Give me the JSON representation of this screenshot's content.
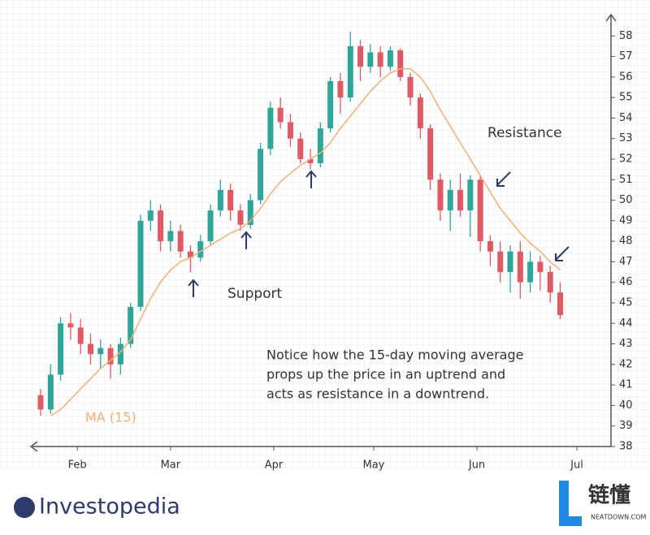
{
  "chart_data": {
    "type": "candlestick",
    "x": [
      20,
      23,
      26,
      29,
      32,
      35,
      38,
      41,
      44,
      47,
      50,
      53,
      56,
      59,
      62,
      65,
      68,
      71,
      74,
      77,
      80,
      83,
      86,
      89,
      92,
      95,
      98,
      101,
      104,
      107,
      110,
      113,
      116,
      119,
      122,
      125,
      128,
      131,
      134,
      137,
      140,
      143,
      146,
      149,
      152,
      155,
      158,
      161,
      164,
      167,
      170,
      173,
      176
    ],
    "open": [
      40.5,
      39.8,
      41.5,
      44,
      43.8,
      43,
      42.5,
      42.8,
      42,
      43,
      44.8,
      49,
      49.5,
      48,
      48.5,
      47.5,
      47.2,
      48,
      49.5,
      50.5,
      49.5,
      48.8,
      50,
      52.5,
      54.5,
      53.8,
      53,
      52,
      51.8,
      53.5,
      55.8,
      55,
      57.5,
      56.5,
      57.2,
      56.5,
      57.3,
      56,
      55,
      53.5,
      51,
      49.5,
      50.5,
      49.5,
      51,
      48,
      47.5,
      46.5,
      47.5,
      46,
      47,
      46.5,
      45.5
    ],
    "high": [
      40.8,
      42,
      44.3,
      44.5,
      44.2,
      43.5,
      43.2,
      43,
      43.3,
      45,
      49.3,
      50,
      49.8,
      49,
      48.8,
      47.8,
      48.3,
      49.8,
      51,
      50.8,
      49.8,
      50.3,
      52.8,
      54.8,
      55,
      54.2,
      53.3,
      52.5,
      53.8,
      56,
      56.2,
      58.2,
      57.8,
      57.6,
      57.5,
      57.5,
      57.4,
      56.2,
      55.2,
      53.7,
      51.3,
      51,
      51.3,
      51.2,
      51.2,
      48.3,
      48,
      47.8,
      48,
      47.5,
      47.3,
      46.8,
      46
    ],
    "low": [
      39.5,
      39.6,
      41.2,
      43.2,
      42.5,
      42,
      41.8,
      41.3,
      41.5,
      42.8,
      44.6,
      48.5,
      47.5,
      47.5,
      47.2,
      46.5,
      47,
      47.8,
      49.2,
      49,
      48.5,
      48.6,
      49.8,
      52.2,
      53.5,
      52.6,
      51.8,
      51.5,
      51.6,
      53.3,
      54.2,
      54.8,
      55.8,
      56.2,
      56,
      56.3,
      55.8,
      54.6,
      53,
      50.5,
      49,
      48.5,
      49.2,
      48.2,
      47.5,
      46.8,
      46,
      45.5,
      45.2,
      45.5,
      45.6,
      45,
      44.2
    ],
    "close": [
      39.8,
      41.5,
      44,
      43.8,
      43,
      42.5,
      42.8,
      42,
      43,
      44.8,
      49,
      49.5,
      48,
      48.5,
      47.5,
      47.2,
      48,
      49.5,
      50.5,
      49.5,
      48.8,
      50,
      52.5,
      54.5,
      53.8,
      53,
      52,
      51.8,
      53.5,
      55.8,
      55,
      57.5,
      56.5,
      57.2,
      56.5,
      57.3,
      56,
      55,
      53.5,
      51,
      49.5,
      50.5,
      49.5,
      51,
      48,
      47.5,
      46.5,
      47.5,
      46,
      47,
      46.5,
      45.5,
      44.4
    ],
    "up_color": "#2fa69a",
    "down_color": "#e05a64",
    "series": [
      {
        "name": "MA (15)",
        "color": "#f4ae72",
        "values": [
          null,
          39.5,
          39.8,
          40.3,
          40.8,
          41.3,
          41.8,
          42.2,
          42.6,
          43.2,
          44.2,
          45.2,
          46,
          46.6,
          47,
          47.2,
          47.5,
          47.8,
          48.1,
          48.4,
          48.6,
          49,
          49.6,
          50.3,
          50.9,
          51.3,
          51.7,
          52,
          52.3,
          52.8,
          53.5,
          54.1,
          54.7,
          55.3,
          55.8,
          56.2,
          56.4,
          56.4,
          56,
          55.3,
          54.4,
          53.6,
          52.8,
          52,
          51.2,
          50.4,
          49.6,
          49,
          48.4,
          47.9,
          47.5,
          47,
          46.6
        ]
      }
    ],
    "xlim": [
      10,
      191
    ],
    "xticks": [
      {
        "value": 31,
        "label": "Feb"
      },
      {
        "value": 59,
        "label": "Mar"
      },
      {
        "value": 90,
        "label": "Apr"
      },
      {
        "value": 120,
        "label": "May"
      },
      {
        "value": 151,
        "label": "Jun"
      },
      {
        "value": 181,
        "label": "Jul"
      }
    ],
    "ylim": [
      38,
      59
    ],
    "yticks": [
      38,
      39,
      40,
      41,
      42,
      43,
      44,
      45,
      46,
      47,
      48,
      49,
      50,
      51,
      52,
      53,
      54,
      55,
      56,
      57,
      58
    ],
    "annotations": {
      "support": "Support",
      "resistance": "Resistance",
      "note": [
        "Notice how the 15-day moving average",
        "props up the price in an uptrend and",
        "acts as resistance in a downtrend."
      ]
    }
  },
  "footer": {
    "logo": "Investopedia",
    "watermark": "链懂",
    "watermark_sub": "NEATDOWN.COM"
  }
}
